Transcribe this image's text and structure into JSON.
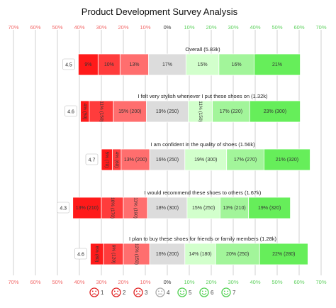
{
  "chart_data": {
    "type": "bar",
    "subtype": "diverging-stacked-bar",
    "title": "Product Development Survey Analysis",
    "axis_ticks": [
      "70%",
      "60%",
      "50%",
      "40%",
      "30%",
      "20%",
      "10%",
      "0%",
      "10%",
      "20%",
      "30%",
      "40%",
      "50%",
      "60%",
      "70%"
    ],
    "xlim": [
      -70,
      70
    ],
    "grid": true,
    "legend_position": "bottom",
    "legend": [
      {
        "label": "1",
        "color": "#ff1a1a"
      },
      {
        "label": "2",
        "color": "#ff3c3c"
      },
      {
        "label": "3",
        "color": "#ff6e6e"
      },
      {
        "label": "4",
        "color": "#dcdcdc"
      },
      {
        "label": "5",
        "color": "#d2ffcc"
      },
      {
        "label": "6",
        "color": "#a2f59a"
      },
      {
        "label": "7",
        "color": "#66ee5a"
      }
    ],
    "categories": [
      {
        "label": "Overall (5.83k)",
        "mean": "4.5",
        "values": [
          9,
          10,
          13,
          17,
          15,
          16,
          21
        ],
        "segment_labels": [
          "9%",
          "10%",
          "13%",
          "17%",
          "15%",
          "16%",
          "21%"
        ]
      },
      {
        "label": "I felt very stylish whenever I put these shoes on (1.32k)",
        "mean": "4.6",
        "values": [
          4,
          11,
          15,
          19,
          11,
          17,
          23
        ],
        "segment_labels": [
          "4% (50)",
          "11% (150)",
          "15% (200)",
          "19% (250)",
          "11% (150)",
          "17% (220)",
          "23% (300)"
        ]
      },
      {
        "label": "I am confident in the quality of shoes (1.56k)",
        "mean": "4.7",
        "values": [
          5,
          4,
          13,
          16,
          19,
          17,
          21
        ],
        "segment_labels": [
          "5% (70)",
          "4% (60)",
          "13% (200)",
          "16% (250)",
          "19% (300)",
          "17% (270)",
          "21% (320)"
        ]
      },
      {
        "label": "I would recommend these shoes to others (1.67k)",
        "mean": "4.3",
        "values": [
          13,
          10,
          11,
          18,
          15,
          13,
          19
        ],
        "segment_labels": [
          "13% (210)",
          "10% (170)",
          "11% (190)",
          "18% (300)",
          "15% (250)",
          "13% (210)",
          "19% (320)"
        ]
      },
      {
        "label": "I plan to buy these shoes for friends or family members (1.28k)",
        "mean": "4.6",
        "values": [
          6,
          9,
          12,
          16,
          14,
          20,
          22
        ],
        "segment_labels": [
          "6% (80)",
          "9% (120)",
          "12% (150)",
          "16% (200)",
          "14% (180)",
          "20% (250)",
          "22% (280)"
        ]
      }
    ]
  }
}
